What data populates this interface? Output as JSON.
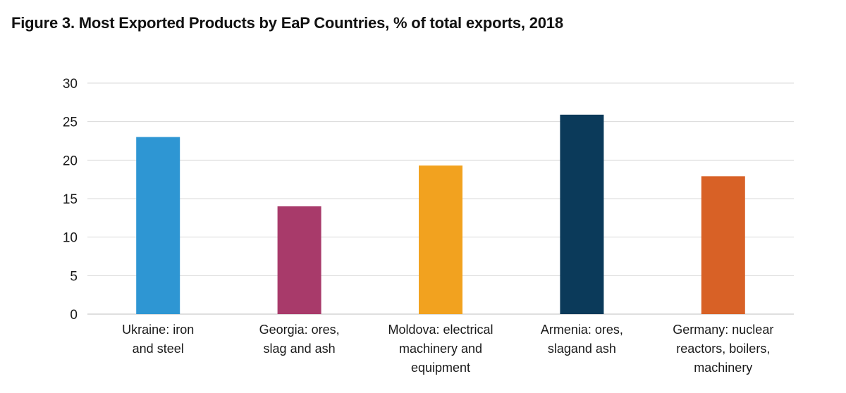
{
  "title": "Figure 3. Most Exported Products by EaP Countries, % of total exports, 2018",
  "chart_data": {
    "type": "bar",
    "title": "Figure 3. Most Exported Products by EaP Countries, % of total exports, 2018",
    "xlabel": "",
    "ylabel": "",
    "ylim": [
      0,
      30
    ],
    "yticks": [
      0,
      5,
      10,
      15,
      20,
      25,
      30
    ],
    "grid": true,
    "legend": "none",
    "categories": [
      [
        "Ukraine: iron",
        "and steel"
      ],
      [
        "Georgia: ores,",
        "slag and ash"
      ],
      [
        "Moldova: electrical",
        "machinery and",
        "equipment"
      ],
      [
        "Armenia: ores,",
        "slagand ash"
      ],
      [
        "Germany: nuclear",
        "reactors, boilers,",
        "machinery"
      ]
    ],
    "values": [
      23,
      14,
      19.3,
      25.9,
      17.9
    ],
    "colors": [
      "#2E96D3",
      "#A83A6A",
      "#F2A21F",
      "#0B3A5A",
      "#D86126"
    ]
  }
}
